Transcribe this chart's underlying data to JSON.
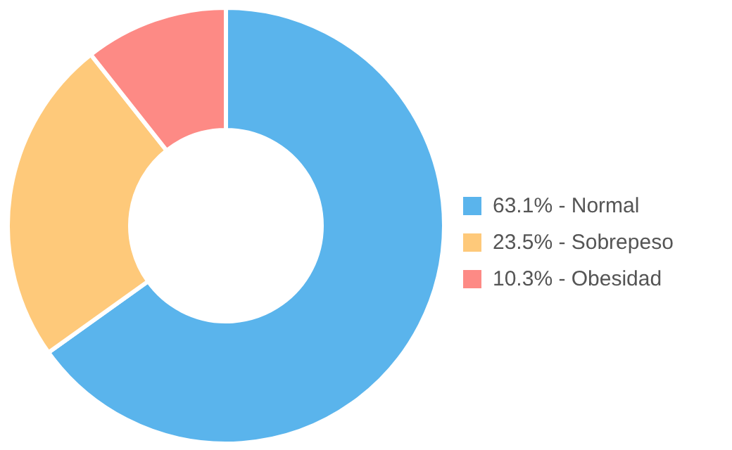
{
  "chart_data": {
    "type": "donut",
    "categories": [
      "Normal",
      "Sobrepeso",
      "Obesidad"
    ],
    "values": [
      63.1,
      23.5,
      10.3
    ],
    "value_labels": [
      "63.1%",
      "23.5%",
      "10.3%"
    ],
    "colors": [
      "#5ab4ec",
      "#fec97a",
      "#fd8a85"
    ],
    "legend": "right"
  }
}
